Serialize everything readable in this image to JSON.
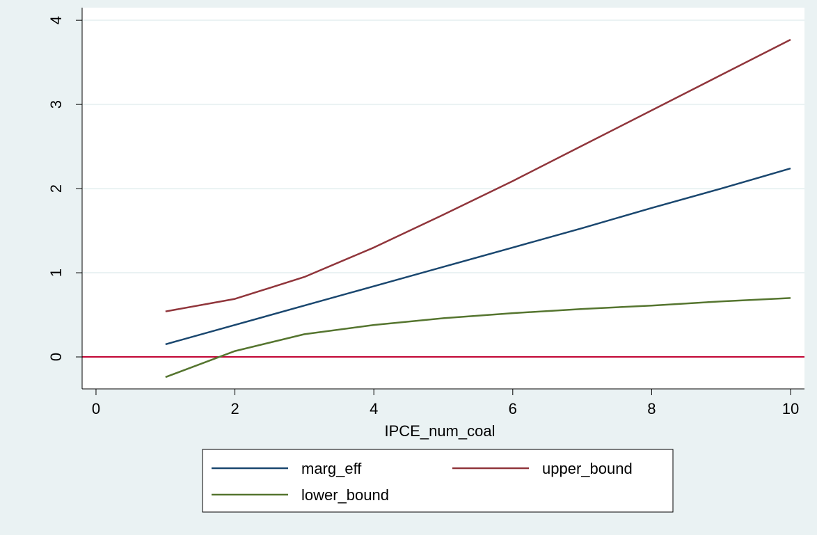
{
  "chart_data": {
    "type": "line",
    "title": "",
    "xlabel": "IPCE_num_coal",
    "ylabel": "",
    "xlim": [
      -0.2,
      10.2
    ],
    "ylim": [
      -0.38,
      4.15
    ],
    "xticks": [
      0,
      2,
      4,
      6,
      8,
      10
    ],
    "yticks": [
      0,
      1,
      2,
      3,
      4
    ],
    "grid": "horizontal",
    "legend": "bottom",
    "series": [
      {
        "name": "marg_eff",
        "color": "#1a476f",
        "x": [
          1,
          2,
          3,
          4,
          5,
          6,
          7,
          8,
          9,
          10
        ],
        "y": [
          0.15,
          0.38,
          0.61,
          0.84,
          1.07,
          1.3,
          1.53,
          1.77,
          2.0,
          2.24
        ]
      },
      {
        "name": "upper_bound",
        "color": "#90353b",
        "x": [
          1,
          2,
          3,
          4,
          5,
          6,
          7,
          8,
          9,
          10
        ],
        "y": [
          0.54,
          0.69,
          0.95,
          1.3,
          1.69,
          2.09,
          2.51,
          2.93,
          3.35,
          3.77
        ]
      },
      {
        "name": "lower_bound",
        "color": "#55752f",
        "x": [
          1,
          2,
          3,
          4,
          5,
          6,
          7,
          8,
          9,
          10
        ],
        "y": [
          -0.24,
          0.07,
          0.27,
          0.38,
          0.46,
          0.52,
          0.57,
          0.61,
          0.66,
          0.7
        ]
      }
    ],
    "reference_line": {
      "y": 0,
      "color": "#c10534"
    }
  }
}
